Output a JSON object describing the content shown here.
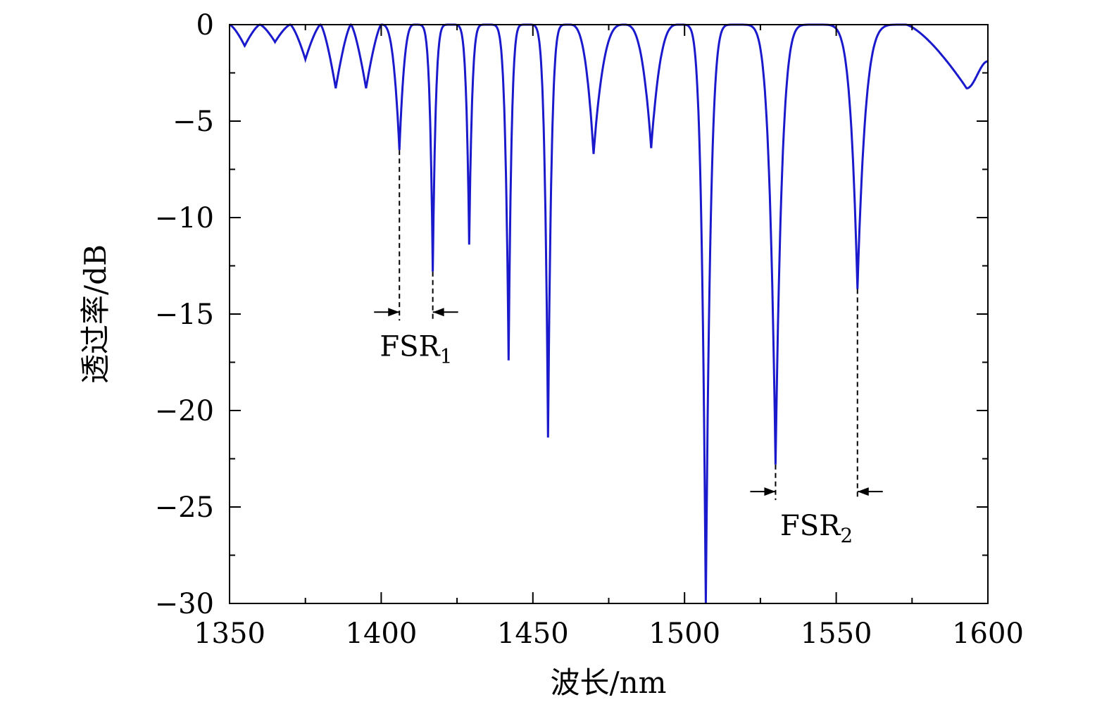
{
  "chart_data": {
    "type": "line",
    "title": "",
    "xlabel": "波长/nm",
    "ylabel": "透过率/dB",
    "xlim": [
      1350,
      1600
    ],
    "ylim": [
      -30,
      0
    ],
    "xticks": [
      1350,
      1400,
      1450,
      1500,
      1550,
      1600
    ],
    "xtick_labels": [
      "1350",
      "1400",
      "1450",
      "1500",
      "1550",
      "1600"
    ],
    "yticks": [
      0,
      -5,
      -10,
      -15,
      -20,
      -25,
      -30
    ],
    "ytick_labels": [
      "0",
      "−5",
      "−10",
      "−15",
      "−20",
      "−25",
      "−30"
    ],
    "grid": false,
    "series": [
      {
        "name": "transmission",
        "color": "#1a1acc",
        "peaks_x": [
          1350,
          1360,
          1370,
          1380,
          1390,
          1400,
          1411,
          1423,
          1435,
          1448,
          1462,
          1480,
          1498,
          1517,
          1543,
          1573
        ],
        "dips": [
          {
            "x": 1355,
            "y": -1.1
          },
          {
            "x": 1365,
            "y": -0.9
          },
          {
            "x": 1375,
            "y": -1.8
          },
          {
            "x": 1385,
            "y": -3.3
          },
          {
            "x": 1395,
            "y": -3.3
          },
          {
            "x": 1406,
            "y": -6.5
          },
          {
            "x": 1417,
            "y": -12.8
          },
          {
            "x": 1429,
            "y": -11.4
          },
          {
            "x": 1442,
            "y": -17.4
          },
          {
            "x": 1455,
            "y": -21.4
          },
          {
            "x": 1470,
            "y": -6.7
          },
          {
            "x": 1489,
            "y": -6.4
          },
          {
            "x": 1507,
            "y": -30
          },
          {
            "x": 1530,
            "y": -22.8
          },
          {
            "x": 1557,
            "y": -13.7
          },
          {
            "x": 1593,
            "y": -3.3
          }
        ],
        "end": {
          "x": 1600,
          "y": -1.9
        }
      }
    ],
    "annotations": [
      {
        "label": "FSR",
        "subscript": "1",
        "x_from": 1406,
        "x_to": 1417,
        "y_arrow": -14.9
      },
      {
        "label": "FSR",
        "subscript": "2",
        "x_from": 1530,
        "x_to": 1557,
        "y_arrow": -24.2
      }
    ]
  }
}
